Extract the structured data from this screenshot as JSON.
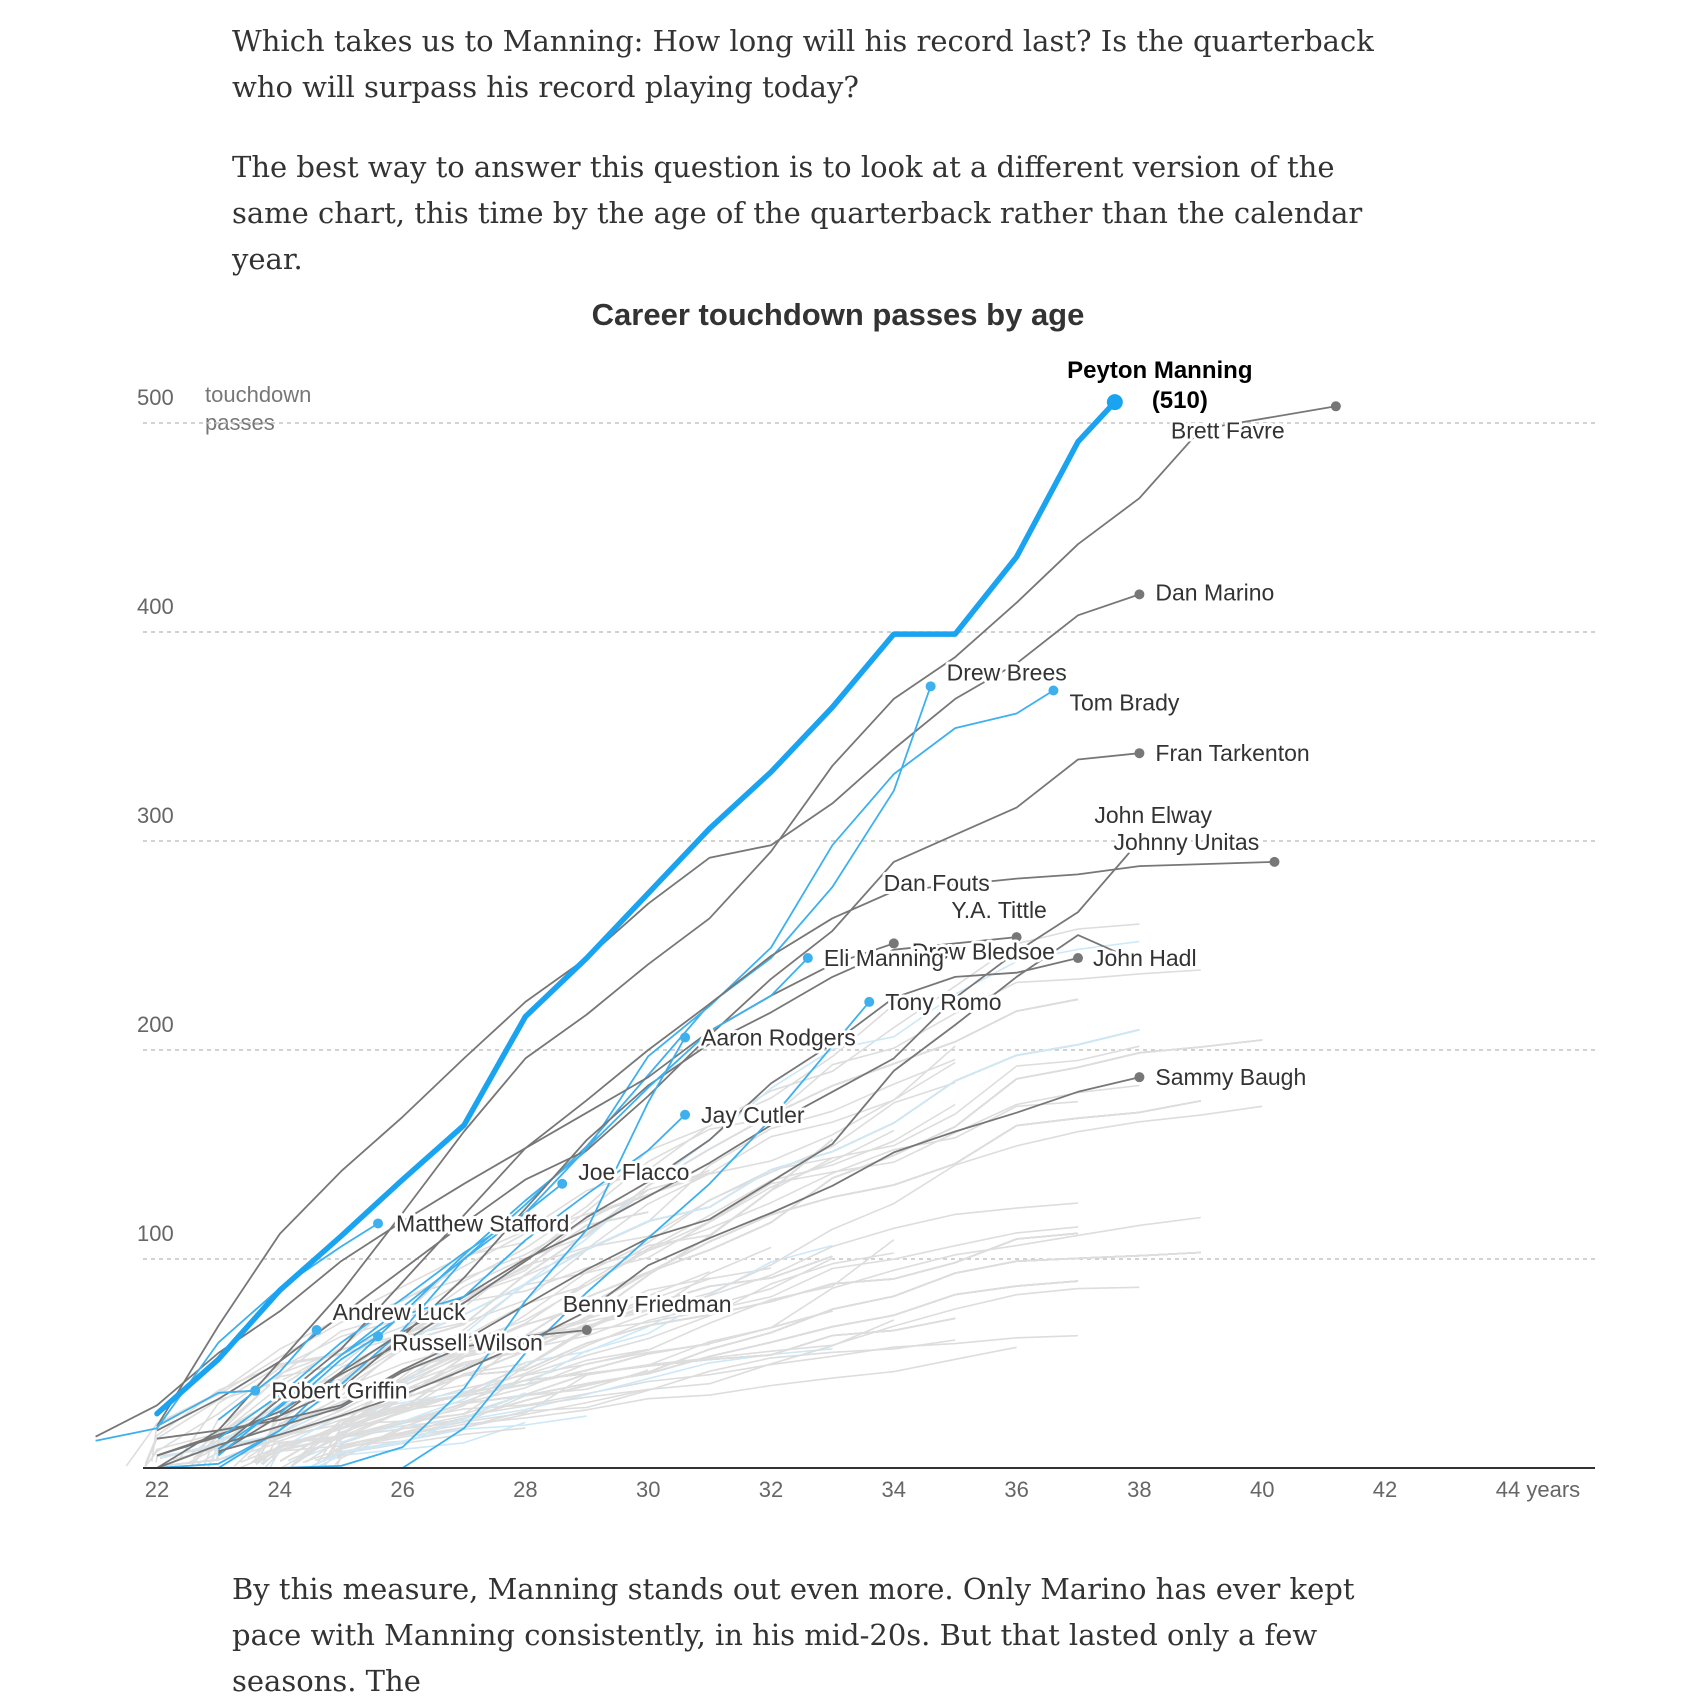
{
  "article": {
    "para_1": "Which takes us to Manning: How long will his record last? Is the quarterback who will surpass his record playing today?",
    "para_2": "The best way to answer this question is to look at a different version of the same chart, this time by the age of the quarterback rather than the calendar year.",
    "para_3": "By this measure, Manning stands out even more. Only Marino has ever kept pace with Manning consistently, in his mid-20s. But that lasted only a few seasons. The"
  },
  "chart_data": {
    "type": "line",
    "title": "Career touchdown passes by age",
    "ylabel": "touchdown passes",
    "xlabel": "years",
    "xlim": [
      21.8,
      45.5
    ],
    "ylim": [
      0,
      510
    ],
    "x_ticks": [
      22,
      24,
      26,
      28,
      30,
      32,
      34,
      36,
      38,
      40,
      42,
      44
    ],
    "x_tick_labels": [
      "22",
      "24",
      "26",
      "28",
      "30",
      "32",
      "34",
      "36",
      "38",
      "40",
      "42",
      "44 years"
    ],
    "y_ticks": [
      100,
      200,
      300,
      400,
      500
    ],
    "y_tick_labels": [
      "100",
      "200",
      "300",
      "400",
      "500"
    ],
    "gridlines": "horizontal dashed",
    "colors": {
      "highlight": "#1aa3f0",
      "active": "#3eb0ee",
      "retired": "#777777",
      "background": "#dddddd",
      "background_active": "#cde8f7"
    },
    "highlight": {
      "label": "Peyton Manning",
      "value_label": "(510)",
      "points": [
        [
          22,
          26
        ],
        [
          23,
          52
        ],
        [
          24,
          85
        ],
        [
          25,
          111
        ],
        [
          26,
          138
        ],
        [
          27,
          164
        ],
        [
          28,
          216
        ],
        [
          29,
          244
        ],
        [
          30,
          275
        ],
        [
          31,
          306
        ],
        [
          32,
          333
        ],
        [
          33,
          364
        ],
        [
          34,
          399
        ],
        [
          35,
          399
        ],
        [
          36,
          436
        ],
        [
          37,
          491
        ],
        [
          37.6,
          510
        ]
      ]
    },
    "series": [
      {
        "label": "Brett Favre",
        "status": "retired",
        "points": [
          [
            22,
            0
          ],
          [
            23,
            18
          ],
          [
            24,
            51
          ],
          [
            25,
            84
          ],
          [
            26,
            122
          ],
          [
            27,
            161
          ],
          [
            28,
            196
          ],
          [
            29,
            217
          ],
          [
            30,
            241
          ],
          [
            31,
            263
          ],
          [
            32,
            295
          ],
          [
            33,
            336
          ],
          [
            34,
            368
          ],
          [
            35,
            388
          ],
          [
            36,
            414
          ],
          [
            37,
            442
          ],
          [
            38,
            464
          ],
          [
            39,
            497
          ],
          [
            41.2,
            508
          ]
        ]
      },
      {
        "label": "Dan Marino",
        "status": "retired",
        "points": [
          [
            22,
            20
          ],
          [
            23,
            68
          ],
          [
            24,
            112
          ],
          [
            25,
            142
          ],
          [
            26,
            168
          ],
          [
            27,
            196
          ],
          [
            28,
            223
          ],
          [
            29,
            244
          ],
          [
            30,
            270
          ],
          [
            31,
            292
          ],
          [
            32,
            298
          ],
          [
            33,
            318
          ],
          [
            34,
            344
          ],
          [
            35,
            368
          ],
          [
            36,
            385
          ],
          [
            37,
            408
          ],
          [
            38,
            418
          ]
        ]
      },
      {
        "label": "Drew Brees",
        "status": "active",
        "points": [
          [
            22,
            0
          ],
          [
            23,
            2
          ],
          [
            24,
            18
          ],
          [
            25,
            40
          ],
          [
            26,
            66
          ],
          [
            27,
            100
          ],
          [
            28,
            126
          ],
          [
            29,
            154
          ],
          [
            30,
            188
          ],
          [
            31,
            222
          ],
          [
            32,
            244
          ],
          [
            33,
            278
          ],
          [
            34,
            324
          ],
          [
            34.6,
            374
          ]
        ]
      },
      {
        "label": "Tom Brady",
        "status": "active",
        "points": [
          [
            22,
            0
          ],
          [
            23,
            0
          ],
          [
            24,
            18
          ],
          [
            25,
            46
          ],
          [
            26,
            74
          ],
          [
            27,
            102
          ],
          [
            28,
            128
          ],
          [
            29,
            152
          ],
          [
            30,
            197
          ],
          [
            31,
            221
          ],
          [
            32,
            249
          ],
          [
            33,
            298
          ],
          [
            34,
            332
          ],
          [
            35,
            354
          ],
          [
            36,
            361
          ],
          [
            36.6,
            372
          ]
        ]
      },
      {
        "label": "Fran Tarkenton",
        "status": "retired",
        "points": [
          [
            22,
            18
          ],
          [
            23,
            33
          ],
          [
            24,
            51
          ],
          [
            25,
            73
          ],
          [
            26,
            95
          ],
          [
            27,
            117
          ],
          [
            28,
            138
          ],
          [
            29,
            152
          ],
          [
            30,
            178
          ],
          [
            31,
            207
          ],
          [
            32,
            234
          ],
          [
            33,
            257
          ],
          [
            34,
            290
          ],
          [
            35,
            303
          ],
          [
            36,
            316
          ],
          [
            37,
            339
          ],
          [
            38,
            342
          ]
        ]
      },
      {
        "label": "John Elway",
        "status": "retired",
        "points": [
          [
            23,
            7
          ],
          [
            24,
            25
          ],
          [
            25,
            46
          ],
          [
            26,
            65
          ],
          [
            27,
            82
          ],
          [
            28,
            100
          ],
          [
            29,
            114
          ],
          [
            30,
            130
          ],
          [
            31,
            146
          ],
          [
            32,
            164
          ],
          [
            33,
            180
          ],
          [
            34,
            196
          ],
          [
            35,
            225
          ],
          [
            36,
            247
          ],
          [
            37,
            266
          ],
          [
            38,
            300
          ]
        ]
      },
      {
        "label": "Johnny Unitas",
        "status": "retired",
        "points": [
          [
            23,
            9
          ],
          [
            24,
            33
          ],
          [
            25,
            57
          ],
          [
            26,
            89
          ],
          [
            27,
            121
          ],
          [
            28,
            153
          ],
          [
            29,
            176
          ],
          [
            30,
            200
          ],
          [
            31,
            222
          ],
          [
            32,
            245
          ],
          [
            33,
            263
          ],
          [
            34,
            276
          ],
          [
            35,
            279
          ],
          [
            36,
            282
          ],
          [
            37,
            284
          ],
          [
            38,
            288
          ],
          [
            40.2,
            290
          ]
        ]
      },
      {
        "label": "Dan Fouts",
        "status": "retired",
        "points": [
          [
            22,
            6
          ],
          [
            23,
            16
          ],
          [
            24,
            25
          ],
          [
            25,
            38
          ],
          [
            26,
            63
          ],
          [
            27,
            91
          ],
          [
            28,
            124
          ],
          [
            29,
            157
          ],
          [
            30,
            183
          ],
          [
            31,
            203
          ],
          [
            32,
            218
          ],
          [
            33,
            235
          ],
          [
            34,
            248
          ],
          [
            36,
            254
          ]
        ]
      },
      {
        "label": "Drew Bledsoe",
        "status": "retired",
        "points": [
          [
            21,
            15
          ],
          [
            22,
            30
          ],
          [
            23,
            55
          ],
          [
            24,
            75
          ],
          [
            25,
            99
          ],
          [
            26,
            118
          ],
          [
            27,
            136
          ],
          [
            28,
            153
          ],
          [
            29,
            170
          ],
          [
            30,
            187
          ],
          [
            31,
            209
          ],
          [
            32,
            226
          ],
          [
            33,
            241
          ],
          [
            34,
            251
          ]
        ]
      },
      {
        "label": "Y.A. Tittle",
        "status": "retired",
        "points": [
          [
            22,
            14
          ],
          [
            23,
            18
          ],
          [
            24,
            23
          ],
          [
            25,
            30
          ],
          [
            26,
            47
          ],
          [
            27,
            61
          ],
          [
            28,
            78
          ],
          [
            29,
            95
          ],
          [
            30,
            110
          ],
          [
            31,
            119
          ],
          [
            32,
            137
          ],
          [
            33,
            155
          ],
          [
            34,
            190
          ],
          [
            35,
            212
          ],
          [
            36,
            235
          ],
          [
            37,
            255
          ],
          [
            38,
            242
          ]
        ]
      },
      {
        "label": "John Hadl",
        "status": "retired",
        "points": [
          [
            22,
            6
          ],
          [
            23,
            15
          ],
          [
            24,
            27
          ],
          [
            25,
            45
          ],
          [
            26,
            60
          ],
          [
            27,
            79
          ],
          [
            28,
            99
          ],
          [
            29,
            120
          ],
          [
            30,
            137
          ],
          [
            31,
            157
          ],
          [
            32,
            184
          ],
          [
            33,
            203
          ],
          [
            34,
            225
          ],
          [
            35,
            235
          ],
          [
            36,
            237
          ],
          [
            37,
            244
          ]
        ]
      },
      {
        "label": "Eli Manning",
        "status": "active",
        "points": [
          [
            23,
            6
          ],
          [
            24,
            30
          ],
          [
            25,
            54
          ],
          [
            26,
            77
          ],
          [
            27,
            100
          ],
          [
            28,
            122
          ],
          [
            29,
            153
          ],
          [
            30,
            182
          ],
          [
            31,
            209
          ],
          [
            32,
            226
          ],
          [
            32.6,
            244
          ]
        ]
      },
      {
        "label": "Tony Romo",
        "status": "active",
        "points": [
          [
            26,
            0
          ],
          [
            27,
            19
          ],
          [
            28,
            55
          ],
          [
            29,
            84
          ],
          [
            30,
            110
          ],
          [
            31,
            136
          ],
          [
            32,
            167
          ],
          [
            33,
            202
          ],
          [
            33.6,
            223
          ]
        ]
      },
      {
        "label": "Aaron Rodgers",
        "status": "active",
        "points": [
          [
            22,
            0
          ],
          [
            24,
            0
          ],
          [
            25,
            1
          ],
          [
            26,
            10
          ],
          [
            27,
            38
          ],
          [
            28,
            80
          ],
          [
            29,
            114
          ],
          [
            30,
            175
          ],
          [
            30.6,
            206
          ]
        ]
      },
      {
        "label": "Jay Cutler",
        "status": "active",
        "points": [
          [
            23,
            9
          ],
          [
            24,
            29
          ],
          [
            25,
            54
          ],
          [
            26,
            73
          ],
          [
            27,
            82
          ],
          [
            28,
            109
          ],
          [
            29,
            131
          ],
          [
            30,
            152
          ],
          [
            30.6,
            169
          ]
        ]
      },
      {
        "label": "Joe Flacco",
        "status": "active",
        "points": [
          [
            23,
            14
          ],
          [
            24,
            35
          ],
          [
            25,
            60
          ],
          [
            26,
            81
          ],
          [
            27,
            103
          ],
          [
            28,
            122
          ],
          [
            28.6,
            136
          ]
        ]
      },
      {
        "label": "Matthew Stafford",
        "status": "active",
        "points": [
          [
            21,
            13
          ],
          [
            22,
            19
          ],
          [
            23,
            60
          ],
          [
            24,
            86
          ],
          [
            25,
            106
          ],
          [
            25.6,
            117
          ]
        ]
      },
      {
        "label": "Andrew Luck",
        "status": "active",
        "points": [
          [
            23,
            23
          ],
          [
            24,
            46
          ],
          [
            24.6,
            66
          ]
        ]
      },
      {
        "label": "Russell Wilson",
        "status": "active",
        "points": [
          [
            24,
            26
          ],
          [
            25,
            52
          ],
          [
            25.6,
            63
          ]
        ]
      },
      {
        "label": "Robert Griffin",
        "status": "active",
        "points": [
          [
            22,
            20
          ],
          [
            23,
            36
          ],
          [
            23.6,
            37
          ]
        ]
      },
      {
        "label": "Sammy Baugh",
        "status": "retired",
        "points": [
          [
            23,
            8
          ],
          [
            24,
            16
          ],
          [
            25,
            25
          ],
          [
            26,
            35
          ],
          [
            27,
            47
          ],
          [
            28,
            60
          ],
          [
            29,
            75
          ],
          [
            30,
            97
          ],
          [
            31,
            110
          ],
          [
            32,
            122
          ],
          [
            33,
            135
          ],
          [
            34,
            151
          ],
          [
            35,
            161
          ],
          [
            36,
            170
          ],
          [
            37,
            180
          ],
          [
            38,
            187
          ]
        ]
      },
      {
        "label": "Benny Friedman",
        "status": "retired",
        "points": [
          [
            22,
            0
          ],
          [
            23,
            11
          ],
          [
            24,
            20
          ],
          [
            25,
            29
          ],
          [
            26,
            46
          ],
          [
            27,
            58
          ],
          [
            28,
            63
          ],
          [
            29,
            66
          ]
        ]
      }
    ]
  }
}
